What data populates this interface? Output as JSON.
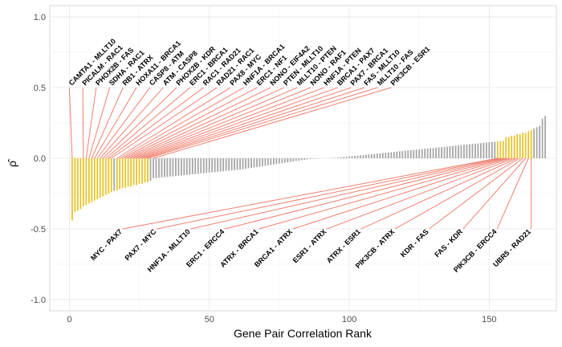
{
  "chart_data": {
    "type": "bar",
    "xlabel": "Gene Pair Correlation Rank",
    "ylabel": "ρ̂",
    "xlim": [
      -7,
      174
    ],
    "ylim": [
      -1.08,
      1.08
    ],
    "x_ticks": [
      0,
      50,
      100,
      150
    ],
    "y_ticks": [
      1.0,
      0.5,
      0.0,
      -0.5,
      -1.0
    ],
    "y_tick_labels": [
      "1.0",
      "0.5",
      "0.0",
      "-0.5",
      "-1.0"
    ],
    "grid": true,
    "n_pairs": 165,
    "colors": {
      "highlight": "#e8c32a",
      "other": "#a6a6a6",
      "connector": "#f08070"
    },
    "values": [
      -0.44,
      -0.38,
      -0.37,
      -0.36,
      -0.34,
      -0.33,
      -0.32,
      -0.31,
      -0.3,
      -0.29,
      -0.28,
      -0.27,
      -0.26,
      -0.25,
      -0.24,
      -0.23,
      -0.23,
      -0.22,
      -0.21,
      -0.21,
      -0.2,
      -0.2,
      -0.19,
      -0.19,
      -0.18,
      -0.18,
      -0.17,
      -0.17,
      -0.16,
      -0.14,
      -0.14,
      -0.138,
      -0.136,
      -0.134,
      -0.132,
      -0.13,
      -0.128,
      -0.126,
      -0.124,
      -0.122,
      -0.12,
      -0.118,
      -0.116,
      -0.114,
      -0.112,
      -0.11,
      -0.108,
      -0.106,
      -0.104,
      -0.102,
      -0.1,
      -0.098,
      -0.096,
      -0.094,
      -0.092,
      -0.09,
      -0.088,
      -0.086,
      -0.084,
      -0.082,
      -0.08,
      -0.077,
      -0.074,
      -0.071,
      -0.068,
      -0.065,
      -0.062,
      -0.059,
      -0.056,
      -0.053,
      -0.05,
      -0.047,
      -0.044,
      -0.041,
      -0.038,
      -0.035,
      -0.032,
      -0.029,
      -0.026,
      -0.023,
      -0.02,
      -0.017,
      -0.014,
      -0.011,
      -0.008,
      -0.005,
      -0.003,
      -0.002,
      -0.001,
      0.0,
      0.0,
      0.0,
      0.001,
      0.002,
      0.003,
      0.005,
      0.007,
      0.009,
      0.011,
      0.013,
      0.015,
      0.017,
      0.019,
      0.021,
      0.023,
      0.025,
      0.027,
      0.029,
      0.031,
      0.033,
      0.035,
      0.037,
      0.039,
      0.041,
      0.043,
      0.045,
      0.047,
      0.049,
      0.051,
      0.053,
      0.055,
      0.057,
      0.059,
      0.061,
      0.063,
      0.065,
      0.067,
      0.069,
      0.071,
      0.073,
      0.075,
      0.077,
      0.079,
      0.081,
      0.083,
      0.085,
      0.087,
      0.089,
      0.091,
      0.093,
      0.095,
      0.097,
      0.099,
      0.101,
      0.103,
      0.105,
      0.107,
      0.109,
      0.111,
      0.113,
      0.115,
      0.117,
      0.119,
      0.121,
      0.123,
      0.15,
      0.15,
      0.16,
      0.16,
      0.17,
      0.17,
      0.18,
      0.18,
      0.19,
      0.2,
      0.21,
      0.22,
      0.23,
      0.28,
      0.3
    ],
    "highlight_ranks": [
      1,
      2,
      3,
      4,
      5,
      6,
      7,
      8,
      9,
      10,
      11,
      12,
      13,
      14,
      15,
      17,
      18,
      19,
      20,
      21,
      22,
      23,
      24,
      25,
      26,
      27,
      28,
      153,
      154,
      155,
      156,
      157,
      158,
      159,
      160,
      161,
      162,
      163,
      164,
      165
    ],
    "annotations_top": [
      {
        "label": "CAMTA1 - MLLT10",
        "rank": 1
      },
      {
        "label": "PICALM - RAC1",
        "rank": 5
      },
      {
        "label": "PHOX2B - FAS",
        "rank": 6
      },
      {
        "label": "SDHA - RAC1",
        "rank": 7
      },
      {
        "label": "RB1 - ATRX",
        "rank": 8
      },
      {
        "label": "HOXA11 - BRCA1",
        "rank": 9
      },
      {
        "label": "CASP8 - ATM",
        "rank": 10
      },
      {
        "label": "ATM - CASP8",
        "rank": 11
      },
      {
        "label": "PHOX2B - KDR",
        "rank": 12
      },
      {
        "label": "ERC1 - BRCA1",
        "rank": 13
      },
      {
        "label": "RAC1 - RAD21",
        "rank": 14
      },
      {
        "label": "RAD21 - RAC1",
        "rank": 15
      },
      {
        "label": "PAX8 - MYC",
        "rank": 17
      },
      {
        "label": "HNF1A - BRCA1",
        "rank": 18
      },
      {
        "label": "ERC1 - NF1",
        "rank": 19
      },
      {
        "label": "NONO - EIF4A2",
        "rank": 20
      },
      {
        "label": "PTEN - MLLT10",
        "rank": 21
      },
      {
        "label": "MLLT10 - PTEN",
        "rank": 22
      },
      {
        "label": "NONO - RAF1",
        "rank": 23
      },
      {
        "label": "HNF1A - PTEN",
        "rank": 24
      },
      {
        "label": "BRCA1 - PAX7",
        "rank": 25
      },
      {
        "label": "PAX7 - BRCA1",
        "rank": 26
      },
      {
        "label": "FAS - MLLT10",
        "rank": 27
      },
      {
        "label": "MLLT10 - FAS",
        "rank": 28
      },
      {
        "label": "PIK3CB - ESR1",
        "rank": 30
      }
    ],
    "annotations_bottom": [
      {
        "label": "MYC - PAX7",
        "rank": 153
      },
      {
        "label": "PAX7 - MYC",
        "rank": 154
      },
      {
        "label": "HNF1A - MLLT10",
        "rank": 155
      },
      {
        "label": "ERC1 - ERCC4",
        "rank": 156
      },
      {
        "label": "ATRX - BRCA1",
        "rank": 157
      },
      {
        "label": "BRCA1 - ATRX",
        "rank": 158
      },
      {
        "label": "ESR1 - ATRX",
        "rank": 159
      },
      {
        "label": "ATRX - ESR1",
        "rank": 160
      },
      {
        "label": "PIK3CB - ATRX",
        "rank": 161
      },
      {
        "label": "KDR - FAS",
        "rank": 162
      },
      {
        "label": "FAS - KDR",
        "rank": 163
      },
      {
        "label": "PIK3CB - ERCC4",
        "rank": 164
      },
      {
        "label": "UBR5 - RAD21",
        "rank": 165
      }
    ]
  }
}
